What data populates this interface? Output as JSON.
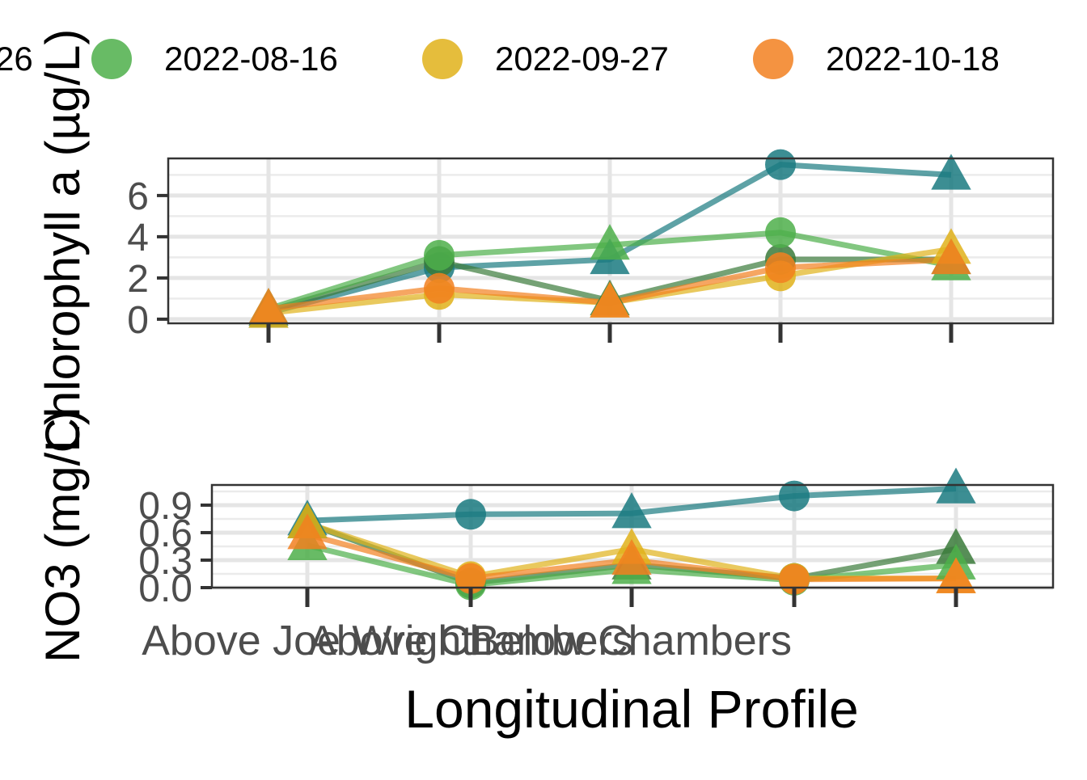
{
  "chart_data": [
    {
      "type": "line",
      "panel": "top",
      "ylabel": "Chlorophyll a (µg/L)",
      "ylim": [
        -0.2,
        7.8
      ],
      "yticks": [
        0,
        2,
        4,
        6
      ],
      "grid": true,
      "categories": [
        "Above Joe Wright",
        "Above Chambers",
        "Below Chambers",
        "",
        ""
      ],
      "series": [
        {
          "name": "",
          "color": "#1A7A80",
          "values": [
            0.3,
            2.5,
            2.9,
            7.5,
            7.0
          ]
        },
        {
          "name": "",
          "color": "#3A7A3A",
          "values": [
            0.4,
            2.8,
            0.9,
            2.9,
            2.9
          ]
        },
        {
          "name": "2022-08-16",
          "color": "#4DAF4A",
          "values": [
            0.5,
            3.1,
            3.6,
            4.2,
            2.6
          ]
        },
        {
          "name": "2022-09-27",
          "color": "#E0B21A",
          "values": [
            0.3,
            1.2,
            0.8,
            2.1,
            3.4
          ]
        },
        {
          "name": "2022-10-18",
          "color": "#F28020",
          "values": [
            0.5,
            1.5,
            0.8,
            2.5,
            2.9
          ]
        }
      ]
    },
    {
      "type": "line",
      "panel": "bottom",
      "ylabel": "NO3 (mg/L)",
      "xlabel": "Longitudinal Profile",
      "ylim": [
        0.0,
        1.12
      ],
      "yticks": [
        "0.0",
        "0.3",
        "0.6",
        "0.9"
      ],
      "grid": true,
      "categories": [
        "Above Joe Wright",
        "Above Chambers",
        "Below Chambers",
        "",
        ""
      ],
      "series": [
        {
          "name": "",
          "color": "#1A7A80",
          "values": [
            0.73,
            0.8,
            0.81,
            1.0,
            1.08
          ]
        },
        {
          "name": "",
          "color": "#3A7A3A",
          "values": [
            0.7,
            0.05,
            0.25,
            0.1,
            0.42
          ]
        },
        {
          "name": "2022-08-16",
          "color": "#4DAF4A",
          "values": [
            0.46,
            0.03,
            0.2,
            0.08,
            0.25
          ]
        },
        {
          "name": "2022-09-27",
          "color": "#E0B21A",
          "values": [
            0.7,
            0.12,
            0.42,
            0.1,
            0.1
          ]
        },
        {
          "name": "2022-10-18",
          "color": "#F28020",
          "values": [
            0.58,
            0.1,
            0.3,
            0.09,
            0.1
          ]
        }
      ]
    }
  ],
  "legend": {
    "partial_label": "26",
    "items": [
      {
        "label": "2022-08-16",
        "color": "#4DAF4A"
      },
      {
        "label": "2022-09-27",
        "color": "#E0B21A"
      },
      {
        "label": "2022-10-18",
        "color": "#F28020"
      }
    ]
  },
  "axis_labels": {
    "top_y": "Chlorophyll a (µg/L)",
    "bottom_y": "NO3 (mg/L)",
    "x": "Longitudinal Profile"
  },
  "x_tick_labels": [
    "Above Joe Wright",
    "Above Chambers",
    "Below Chambers"
  ]
}
